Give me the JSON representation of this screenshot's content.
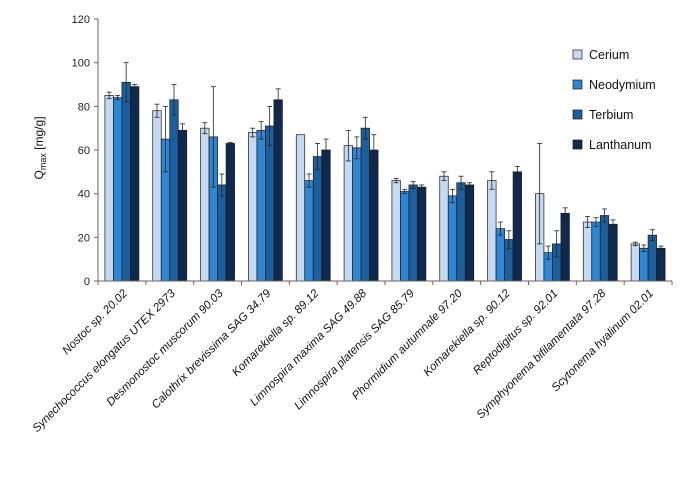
{
  "chart_data": {
    "type": "bar",
    "ylabel": "Q",
    "ylabel_sub": "max",
    "ylabel_unit": " [mg/g]",
    "ylim": [
      0,
      120
    ],
    "yticks": [
      0,
      20,
      40,
      60,
      80,
      100,
      120
    ],
    "grid": false,
    "legend_position": "top-right",
    "categories": [
      "Nostoc sp. 20.02",
      "Synechococcus elongatus UTEX 2973",
      "Desmonostoc muscorum 90.03",
      "Calothrix brevissima SAG 34.79",
      "Komarekiella sp. 89.12",
      "Limnospira maxima SAG 49.88",
      "Limnospira platensis SAG 85.79",
      "Phormidium autumnale 97.20",
      "Komarekiella sp. 90.12",
      "Reptodigitus sp. 92.01",
      "Symphyonema bifilamentata 97.28",
      "Scytonema hyalinum 02.01"
    ],
    "series": [
      {
        "name": "Cerium",
        "color": "#c5d9f1",
        "values": [
          85,
          78,
          70,
          68,
          67,
          62,
          46,
          48,
          46,
          40,
          27,
          17
        ],
        "errors": [
          1.5,
          3,
          2.5,
          2,
          0,
          7,
          1,
          2,
          4,
          23,
          2.5,
          0.8
        ]
      },
      {
        "name": "Neodymium",
        "color": "#2e86d4",
        "values": [
          84,
          65,
          66,
          69,
          46,
          61,
          41,
          39,
          24,
          13,
          27,
          15
        ],
        "errors": [
          1,
          15,
          23,
          4,
          3,
          5,
          1,
          3,
          3,
          3,
          2,
          1.5
        ]
      },
      {
        "name": "Terbium",
        "color": "#1c5f9c",
        "values": [
          91,
          83,
          44,
          71,
          57,
          70,
          44,
          45,
          19,
          17,
          30,
          21
        ],
        "errors": [
          9,
          7,
          5,
          9,
          6,
          5,
          1.5,
          3,
          4,
          6,
          3,
          2.5
        ]
      },
      {
        "name": "Lanthanum",
        "color": "#10294f",
        "values": [
          89,
          69,
          63,
          83,
          60,
          60,
          43,
          44,
          50,
          31,
          26,
          15
        ],
        "errors": [
          1,
          3,
          0.5,
          5,
          5,
          7,
          1,
          1,
          2.5,
          2.5,
          2,
          1
        ]
      }
    ]
  }
}
